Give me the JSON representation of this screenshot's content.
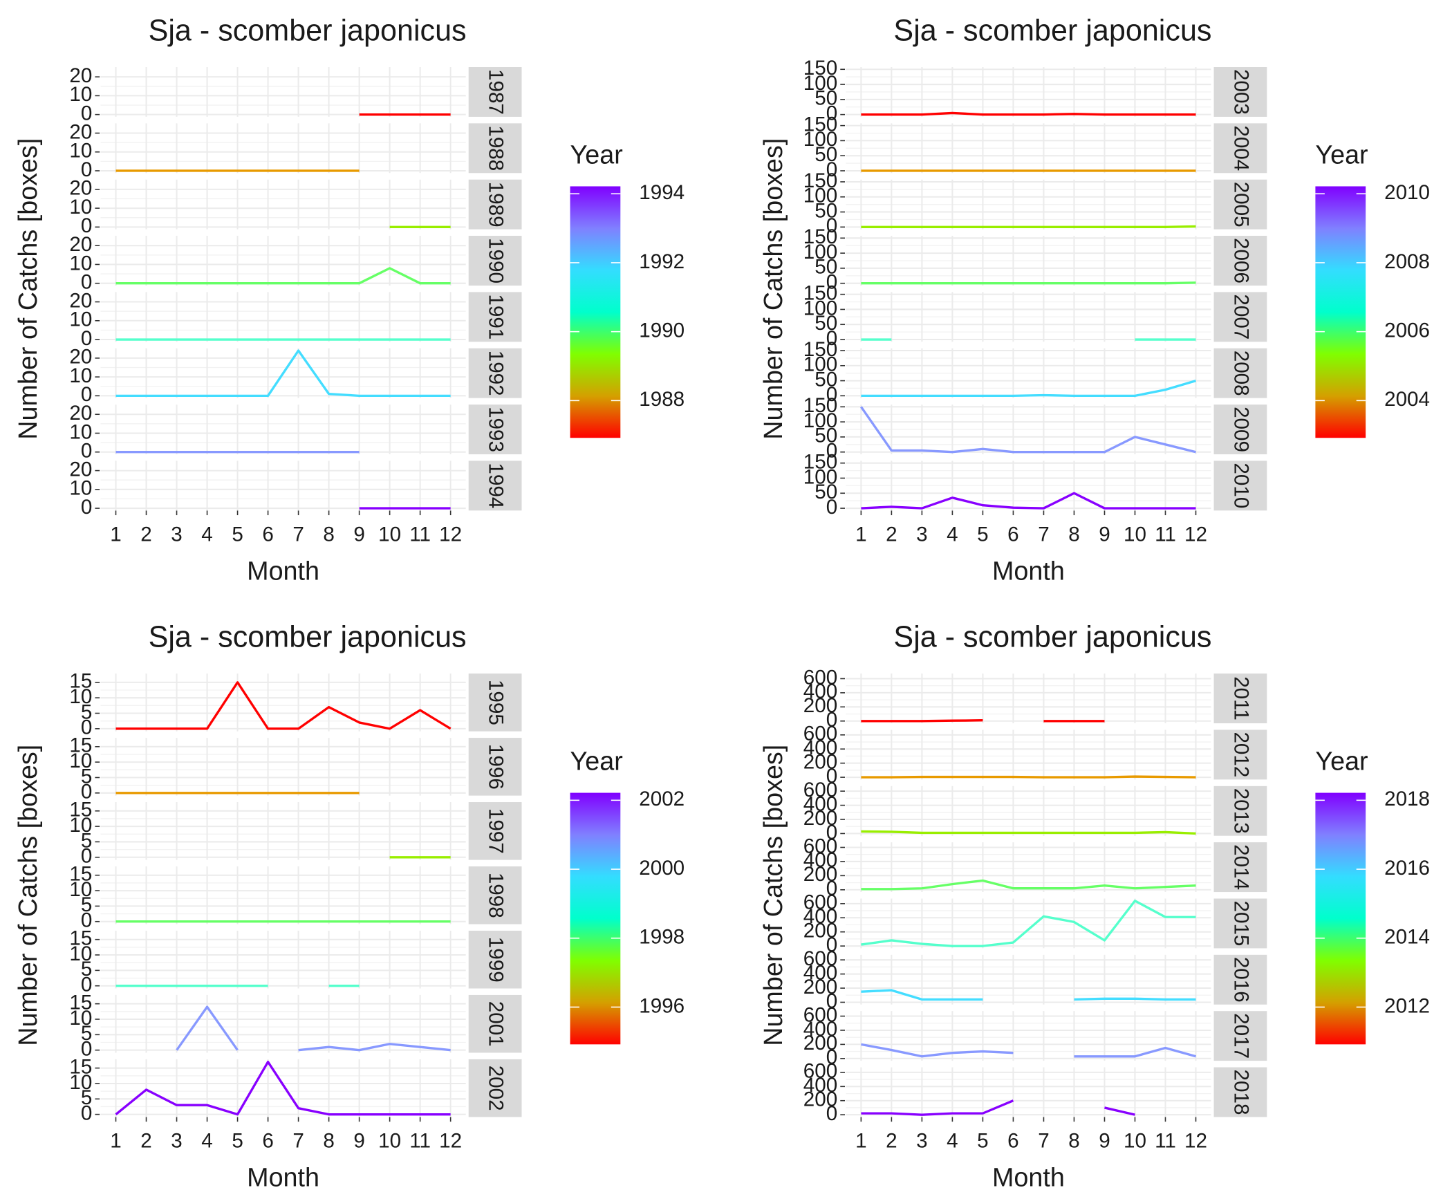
{
  "chart_data": [
    {
      "type": "line",
      "title": "Sja - scomber japonicus",
      "x_label": "Month",
      "y_label": "Number of Catchs [boxes]",
      "legend_title": "Year",
      "x": [
        1,
        2,
        3,
        4,
        5,
        6,
        7,
        8,
        9,
        10,
        11,
        12
      ],
      "xlim": [
        0.5,
        12.5
      ],
      "xticks": [
        1,
        2,
        3,
        4,
        5,
        6,
        7,
        8,
        9,
        10,
        11,
        12
      ],
      "ylim": [
        -1.2,
        25.2
      ],
      "yticks": [
        0,
        10,
        20
      ],
      "grid": true,
      "colorbar_lim": [
        1987,
        1994
      ],
      "colorbar_ticks": [
        1988,
        1990,
        1992,
        1994
      ],
      "colorbar_colors": [
        "#ff0000",
        "#d4a000",
        "#80ff00",
        "#00ffcc",
        "#33ddff",
        "#8080ff",
        "#8000ff"
      ],
      "series": [
        {
          "name": "1987",
          "color": "#ff0000",
          "values": [
            null,
            null,
            null,
            null,
            null,
            null,
            null,
            null,
            0,
            0,
            0,
            0
          ]
        },
        {
          "name": "1988",
          "color": "#e89a00",
          "values": [
            0,
            0,
            0,
            0,
            0,
            0,
            0,
            0,
            0,
            null,
            null,
            null
          ]
        },
        {
          "name": "1989",
          "color": "#99ee00",
          "values": [
            null,
            null,
            null,
            null,
            null,
            null,
            null,
            null,
            null,
            0,
            0,
            0
          ]
        },
        {
          "name": "1990",
          "color": "#66ff66",
          "values": [
            0,
            0,
            0,
            0,
            0,
            0,
            0,
            0,
            0,
            8,
            0,
            0
          ]
        },
        {
          "name": "1991",
          "color": "#55ffcc",
          "values": [
            0,
            0,
            0,
            0,
            0,
            0,
            0,
            0,
            0,
            0,
            0,
            0
          ]
        },
        {
          "name": "1992",
          "color": "#44ddff",
          "values": [
            0,
            0,
            0,
            0,
            0,
            0,
            24,
            1,
            0,
            0,
            0,
            0
          ]
        },
        {
          "name": "1993",
          "color": "#8899ff",
          "values": [
            0,
            0,
            0,
            0,
            0,
            0,
            0,
            0,
            0,
            null,
            null,
            null
          ]
        },
        {
          "name": "1994",
          "color": "#8800ff",
          "values": [
            null,
            null,
            null,
            null,
            null,
            null,
            null,
            null,
            0,
            0,
            0,
            0
          ]
        }
      ]
    },
    {
      "type": "line",
      "title": "Sja - scomber japonicus",
      "x_label": "Month",
      "y_label": "Number of Catchs [boxes]",
      "legend_title": "Year",
      "x": [
        1,
        2,
        3,
        4,
        5,
        6,
        7,
        8,
        9,
        10,
        11,
        12
      ],
      "xlim": [
        0.5,
        12.5
      ],
      "xticks": [
        1,
        2,
        3,
        4,
        5,
        6,
        7,
        8,
        9,
        10,
        11,
        12
      ],
      "ylim": [
        -7.5,
        157.5
      ],
      "yticks": [
        0,
        50,
        100,
        150
      ],
      "grid": true,
      "colorbar_lim": [
        2003,
        2010
      ],
      "colorbar_ticks": [
        2004,
        2006,
        2008,
        2010
      ],
      "colorbar_colors": [
        "#ff0000",
        "#d4a000",
        "#80ff00",
        "#00ffcc",
        "#33ddff",
        "#8080ff",
        "#8000ff"
      ],
      "series": [
        {
          "name": "2003",
          "color": "#ff0000",
          "values": [
            0,
            0,
            0,
            5,
            0,
            0,
            0,
            2,
            0,
            0,
            0,
            0
          ]
        },
        {
          "name": "2004",
          "color": "#e89a00",
          "values": [
            0,
            0,
            0,
            0,
            0,
            0,
            0,
            0,
            0,
            0,
            0,
            0
          ]
        },
        {
          "name": "2005",
          "color": "#99ee00",
          "values": [
            0,
            0,
            0,
            0,
            0,
            0,
            0,
            0,
            0,
            0,
            0,
            2
          ]
        },
        {
          "name": "2006",
          "color": "#66ff66",
          "values": [
            0,
            0,
            0,
            0,
            0,
            0,
            0,
            0,
            0,
            0,
            0,
            2
          ]
        },
        {
          "name": "2007",
          "color": "#55ffcc",
          "values": [
            0,
            0,
            null,
            null,
            null,
            null,
            null,
            null,
            null,
            0,
            0,
            0
          ]
        },
        {
          "name": "2008",
          "color": "#44ddff",
          "values": [
            0,
            0,
            0,
            0,
            0,
            0,
            2,
            0,
            0,
            0,
            20,
            50
          ]
        },
        {
          "name": "2009",
          "color": "#8899ff",
          "values": [
            150,
            5,
            5,
            0,
            10,
            0,
            0,
            0,
            0,
            50,
            25,
            0
          ]
        },
        {
          "name": "2010",
          "color": "#8800ff",
          "values": [
            0,
            5,
            0,
            35,
            10,
            2,
            0,
            50,
            0,
            0,
            0,
            0
          ]
        }
      ]
    },
    {
      "type": "line",
      "title": "Sja - scomber japonicus",
      "x_label": "Month",
      "y_label": "Number of Catchs [boxes]",
      "legend_title": "Year",
      "x": [
        1,
        2,
        3,
        4,
        5,
        6,
        7,
        8,
        9,
        10,
        11,
        12
      ],
      "xlim": [
        0.5,
        12.5
      ],
      "xticks": [
        1,
        2,
        3,
        4,
        5,
        6,
        7,
        8,
        9,
        10,
        11,
        12
      ],
      "ylim": [
        -0.85,
        17.85
      ],
      "yticks": [
        0,
        5,
        10,
        15
      ],
      "grid": true,
      "colorbar_lim": [
        1995,
        2002
      ],
      "colorbar_ticks": [
        1996,
        1998,
        2000,
        2002
      ],
      "colorbar_colors": [
        "#ff0000",
        "#d4a000",
        "#80ff00",
        "#00ffcc",
        "#33ddff",
        "#8080ff",
        "#8000ff"
      ],
      "series": [
        {
          "name": "1995",
          "color": "#ff0000",
          "values": [
            0,
            0,
            0,
            0,
            15,
            0,
            0,
            7,
            2,
            0,
            6,
            0
          ]
        },
        {
          "name": "1996",
          "color": "#e89a00",
          "values": [
            0,
            0,
            0,
            0,
            0,
            0,
            0,
            0,
            0,
            null,
            null,
            null
          ]
        },
        {
          "name": "1997",
          "color": "#99ee00",
          "values": [
            null,
            null,
            null,
            null,
            null,
            null,
            null,
            null,
            null,
            0,
            0,
            0
          ]
        },
        {
          "name": "1998",
          "color": "#66ff66",
          "values": [
            0,
            0,
            0,
            0,
            0,
            0,
            0,
            0,
            0,
            0,
            0,
            0
          ]
        },
        {
          "name": "1999",
          "color": "#55ffcc",
          "values": [
            0,
            0,
            0,
            0,
            0,
            0,
            null,
            0,
            0,
            null,
            null,
            null
          ]
        },
        {
          "name": "2001",
          "color": "#8899ff",
          "values": [
            null,
            null,
            0,
            14,
            0,
            null,
            0,
            1,
            0,
            2,
            1,
            0
          ]
        },
        {
          "name": "2002",
          "color": "#8800ff",
          "values": [
            0,
            8,
            3,
            3,
            0,
            17,
            2,
            0,
            0,
            0,
            0,
            0
          ]
        }
      ]
    },
    {
      "type": "line",
      "title": "Sja - scomber japonicus",
      "x_label": "Month",
      "y_label": "Number of Catchs [boxes]",
      "legend_title": "Year",
      "x": [
        1,
        2,
        3,
        4,
        5,
        6,
        7,
        8,
        9,
        10,
        11,
        12
      ],
      "xlim": [
        0.5,
        12.5
      ],
      "xticks": [
        1,
        2,
        3,
        4,
        5,
        6,
        7,
        8,
        9,
        10,
        11,
        12
      ],
      "ylim": [
        -32,
        672
      ],
      "yticks": [
        0,
        200,
        400,
        600
      ],
      "grid": true,
      "colorbar_lim": [
        2011,
        2018
      ],
      "colorbar_ticks": [
        2012,
        2014,
        2016,
        2018
      ],
      "colorbar_colors": [
        "#ff0000",
        "#d4a000",
        "#80ff00",
        "#00ffcc",
        "#33ddff",
        "#8080ff",
        "#8000ff"
      ],
      "series": [
        {
          "name": "2011",
          "color": "#ff0000",
          "values": [
            0,
            0,
            0,
            5,
            10,
            null,
            0,
            0,
            0,
            null,
            null,
            null
          ]
        },
        {
          "name": "2012",
          "color": "#e89a00",
          "values": [
            0,
            0,
            5,
            5,
            5,
            5,
            0,
            0,
            0,
            10,
            5,
            0
          ]
        },
        {
          "name": "2013",
          "color": "#99ee00",
          "values": [
            30,
            25,
            10,
            10,
            10,
            10,
            10,
            10,
            10,
            10,
            20,
            0
          ]
        },
        {
          "name": "2014",
          "color": "#66ff66",
          "values": [
            10,
            10,
            20,
            80,
            130,
            20,
            20,
            20,
            60,
            20,
            40,
            60
          ]
        },
        {
          "name": "2015",
          "color": "#55ffcc",
          "values": [
            20,
            80,
            30,
            0,
            0,
            50,
            420,
            340,
            80,
            640,
            410,
            410
          ]
        },
        {
          "name": "2016",
          "color": "#44ddff",
          "values": [
            150,
            170,
            40,
            40,
            40,
            null,
            null,
            40,
            50,
            50,
            40,
            40
          ]
        },
        {
          "name": "2017",
          "color": "#8899ff",
          "values": [
            200,
            120,
            30,
            80,
            100,
            80,
            null,
            30,
            30,
            30,
            150,
            30
          ]
        },
        {
          "name": "2018",
          "color": "#8800ff",
          "values": [
            20,
            20,
            0,
            20,
            20,
            200,
            null,
            null,
            100,
            0,
            null,
            null
          ]
        }
      ]
    }
  ]
}
